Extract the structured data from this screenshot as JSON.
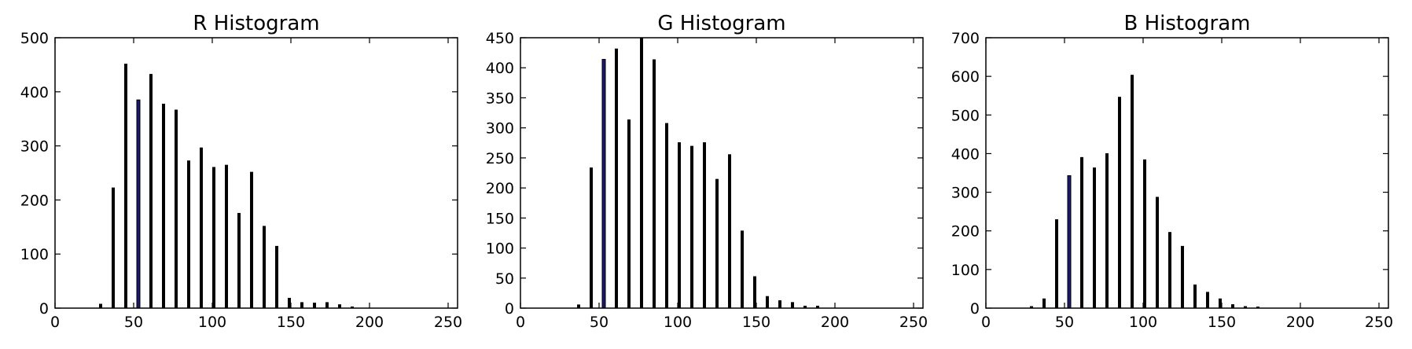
{
  "chart_data": [
    {
      "type": "bar",
      "title": "R Histogram",
      "xlabel": "",
      "ylabel": "",
      "xlim": [
        0,
        256
      ],
      "ylim": [
        0,
        500
      ],
      "xticks": [
        0,
        50,
        100,
        150,
        200,
        250
      ],
      "yticks": [
        0,
        100,
        200,
        300,
        400,
        500
      ],
      "grid": false,
      "bar_color": "#000000",
      "highlight_color": "#191970",
      "highlight_x": [
        53
      ],
      "x": [
        29,
        37,
        45,
        53,
        61,
        69,
        77,
        85,
        93,
        101,
        109,
        117,
        125,
        133,
        141,
        149,
        157,
        165,
        173,
        181,
        189
      ],
      "values": [
        8,
        223,
        452,
        385,
        433,
        378,
        367,
        273,
        297,
        261,
        265,
        176,
        252,
        152,
        115,
        19,
        11,
        10,
        11,
        7,
        3
      ]
    },
    {
      "type": "bar",
      "title": "G Histogram",
      "xlabel": "",
      "ylabel": "",
      "xlim": [
        0,
        256
      ],
      "ylim": [
        0,
        450
      ],
      "xticks": [
        0,
        50,
        100,
        150,
        200,
        250
      ],
      "yticks": [
        0,
        50,
        100,
        150,
        200,
        250,
        300,
        350,
        400,
        450
      ],
      "grid": false,
      "bar_color": "#000000",
      "highlight_color": "#191970",
      "highlight_x": [
        53
      ],
      "x": [
        37,
        45,
        53,
        61,
        69,
        77,
        85,
        93,
        101,
        109,
        117,
        125,
        133,
        141,
        149,
        157,
        165,
        173,
        181,
        189
      ],
      "values": [
        6,
        234,
        414,
        432,
        314,
        450,
        414,
        308,
        276,
        270,
        276,
        215,
        256,
        129,
        53,
        20,
        13,
        10,
        4,
        4
      ]
    },
    {
      "type": "bar",
      "title": "B Histogram",
      "xlabel": "",
      "ylabel": "",
      "xlim": [
        0,
        256
      ],
      "ylim": [
        0,
        700
      ],
      "xticks": [
        0,
        50,
        100,
        150,
        200,
        250
      ],
      "yticks": [
        0,
        100,
        200,
        300,
        400,
        500,
        600,
        700
      ],
      "grid": false,
      "bar_color": "#000000",
      "highlight_color": "#191970",
      "highlight_x": [
        53
      ],
      "x": [
        29,
        37,
        45,
        53,
        61,
        69,
        77,
        85,
        93,
        101,
        109,
        117,
        125,
        133,
        141,
        149,
        157,
        165,
        173
      ],
      "values": [
        5,
        25,
        230,
        343,
        391,
        364,
        401,
        547,
        604,
        385,
        288,
        197,
        161,
        61,
        42,
        25,
        10,
        5,
        4
      ]
    }
  ]
}
